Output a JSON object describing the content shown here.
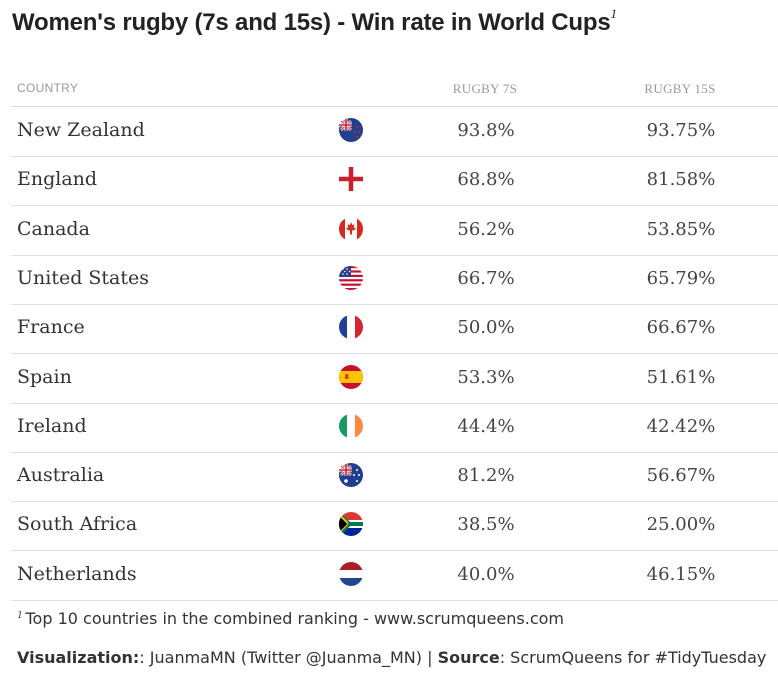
{
  "title": "Women's rugby (7s and 15s) - Win rate in World Cups",
  "title_note": "1",
  "columns": {
    "country": "COUNTRY",
    "rugby7": "RUGBY 7S",
    "rugby15": "RUGBY 15S"
  },
  "chart_data": {
    "type": "table",
    "columns": [
      "COUNTRY",
      "RUGBY 7S",
      "RUGBY 15S"
    ],
    "rows": [
      {
        "country": "New Zealand",
        "flag": "new-zealand",
        "rugby7": "93.8%",
        "rugby15": "93.75%"
      },
      {
        "country": "England",
        "flag": "england",
        "rugby7": "68.8%",
        "rugby15": "81.58%"
      },
      {
        "country": "Canada",
        "flag": "canada",
        "rugby7": "56.2%",
        "rugby15": "53.85%"
      },
      {
        "country": "United States",
        "flag": "united-states",
        "rugby7": "66.7%",
        "rugby15": "65.79%"
      },
      {
        "country": "France",
        "flag": "france",
        "rugby7": "50.0%",
        "rugby15": "66.67%"
      },
      {
        "country": "Spain",
        "flag": "spain",
        "rugby7": "53.3%",
        "rugby15": "51.61%"
      },
      {
        "country": "Ireland",
        "flag": "ireland",
        "rugby7": "44.4%",
        "rugby15": "42.42%"
      },
      {
        "country": "Australia",
        "flag": "australia",
        "rugby7": "81.2%",
        "rugby15": "56.67%"
      },
      {
        "country": "South Africa",
        "flag": "south-africa",
        "rugby7": "38.5%",
        "rugby15": "25.00%"
      },
      {
        "country": "Netherlands",
        "flag": "netherlands",
        "rugby7": "40.0%",
        "rugby15": "46.15%"
      }
    ]
  },
  "footnote": {
    "marker": "1",
    "text": "Top 10 countries in the combined ranking - www.scrumqueens.com"
  },
  "credits": {
    "viz_label": "Visualization:",
    "viz_value": ": JuanmaMN (Twitter @Juanma_MN) | ",
    "source_label": "Source",
    "source_value": ": ScrumQueens for #TidyTuesday"
  }
}
